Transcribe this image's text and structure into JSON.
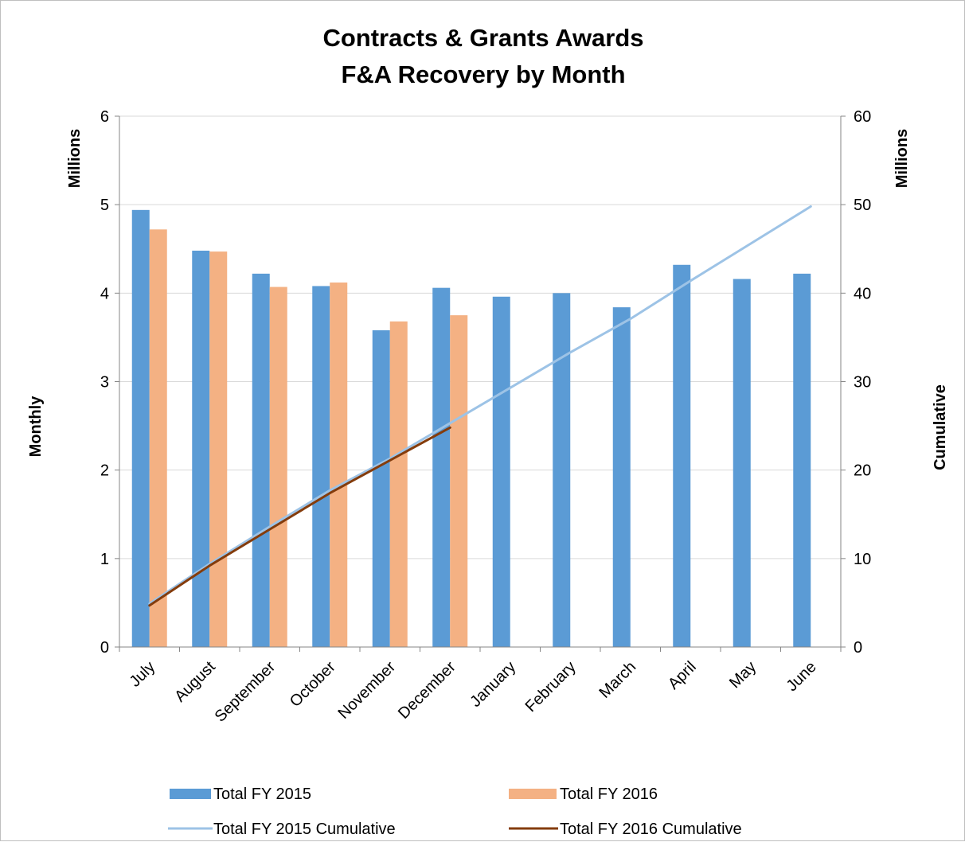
{
  "chart_data": {
    "type": "bar",
    "title": [
      "Contracts & Grants Awards",
      "F&A Recovery by Month"
    ],
    "categories": [
      "July",
      "August",
      "September",
      "October",
      "November",
      "December",
      "January",
      "February",
      "March",
      "April",
      "May",
      "June"
    ],
    "series": [
      {
        "name": "Total FY 2015",
        "type": "bar",
        "axis": "left",
        "color": "#5b9bd5",
        "values": [
          4.94,
          4.48,
          4.22,
          4.08,
          3.58,
          4.06,
          3.96,
          4.0,
          3.84,
          4.32,
          4.16,
          4.22
        ]
      },
      {
        "name": "Total FY 2016",
        "type": "bar",
        "axis": "left",
        "color": "#f4b183",
        "values": [
          4.72,
          4.47,
          4.07,
          4.12,
          3.68,
          3.75,
          null,
          null,
          null,
          null,
          null,
          null
        ]
      },
      {
        "name": "Total FY 2015 Cumulative",
        "type": "line",
        "axis": "right",
        "color": "#9dc3e6",
        "values": [
          4.9,
          9.4,
          13.6,
          17.7,
          21.3,
          25.3,
          29.3,
          33.3,
          37.1,
          41.4,
          45.6,
          49.8
        ]
      },
      {
        "name": "Total FY 2016 Cumulative",
        "type": "line",
        "axis": "right",
        "color": "#843c0c",
        "values": [
          4.7,
          9.2,
          13.3,
          17.4,
          21.1,
          24.8,
          null,
          null,
          null,
          null,
          null,
          null
        ]
      }
    ],
    "y_left": {
      "label": "Monthly",
      "unit_label": "Millions",
      "min": 0,
      "max": 6,
      "ticks": [
        0,
        1,
        2,
        3,
        4,
        5,
        6
      ]
    },
    "y_right": {
      "label": "Cumulative",
      "unit_label": "Millions",
      "min": 0,
      "max": 60,
      "ticks": [
        0,
        10,
        20,
        30,
        40,
        50,
        60
      ]
    },
    "grid": true,
    "legend_position": "bottom"
  }
}
